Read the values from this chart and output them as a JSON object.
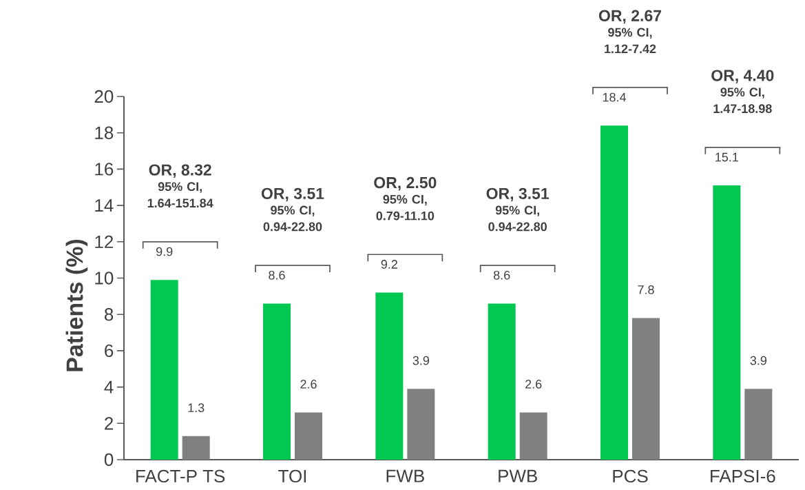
{
  "chart_data": {
    "type": "bar",
    "ylabel": "Patients (%)",
    "categories": [
      "FACT-P TS",
      "TOI",
      "FWB",
      "PWB",
      "PCS",
      "FAPSI-6"
    ],
    "series": [
      {
        "color": "#00c850",
        "values": [
          9.9,
          8.6,
          9.2,
          8.6,
          18.4,
          15.1
        ]
      },
      {
        "color": "#808080",
        "values": [
          1.3,
          2.6,
          3.9,
          2.6,
          7.8,
          3.9
        ]
      }
    ],
    "ylim": [
      0,
      20
    ],
    "yticks": [
      0,
      2,
      4,
      6,
      8,
      10,
      12,
      14,
      16,
      18,
      20
    ],
    "data_labels": true,
    "grid": false,
    "annotations": [
      "OR, 8.32",
      "95% CI, 1.64-151.84",
      "OR, 3.51",
      "95% CI, 0.94-22.80",
      "OR, 2.50",
      "95% CI, 0.79-11.10",
      "OR, 3.51",
      "95% CI, 0.94-22.80",
      "OR, 2.67",
      "95% CI, 1.12-7.42",
      "OR, 4.40",
      "95% CI, 1.47-18.98"
    ]
  }
}
